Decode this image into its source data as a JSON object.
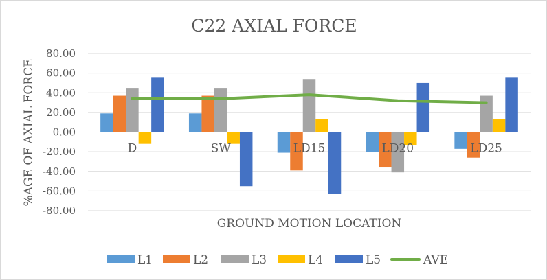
{
  "chart_data": {
    "type": "bar",
    "title": "C22 AXIAL FORCE",
    "xlabel": "GROUND MOTION LOCATION",
    "ylabel": "%AGE OF AXIAL FORCE",
    "ylim": [
      -80,
      80
    ],
    "yticks": [
      "80.00",
      "60.00",
      "40.00",
      "20.00",
      "0.00",
      "-20.00",
      "-40.00",
      "-60.00",
      "-80.00"
    ],
    "grid": true,
    "legend_position": "bottom",
    "categories": [
      "D",
      "SW",
      "LD15",
      "LD20",
      "LD25"
    ],
    "series": [
      {
        "name": "L1",
        "type": "bar",
        "color": "#5b9bd5",
        "values": [
          19,
          19,
          -21,
          -20,
          -17
        ]
      },
      {
        "name": "L2",
        "type": "bar",
        "color": "#ed7d31",
        "values": [
          37,
          37,
          -39,
          -36,
          -26
        ]
      },
      {
        "name": "L3",
        "type": "bar",
        "color": "#a5a5a5",
        "values": [
          45,
          45,
          54,
          -41,
          37
        ]
      },
      {
        "name": "L4",
        "type": "bar",
        "color": "#ffc000",
        "values": [
          -12,
          -12,
          13,
          -13,
          13
        ]
      },
      {
        "name": "L5",
        "type": "bar",
        "color": "#4472c4",
        "values": [
          56,
          -55,
          -63,
          50,
          56
        ]
      },
      {
        "name": "AVE",
        "type": "line",
        "color": "#70ad47",
        "values": [
          34,
          34,
          38,
          32,
          30
        ]
      }
    ]
  }
}
